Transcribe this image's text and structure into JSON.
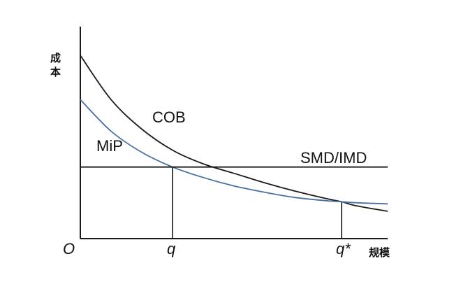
{
  "chart_data": {
    "type": "line",
    "title": "",
    "y_axis_label_chars": [
      "成",
      "本"
    ],
    "x_axis_label": "规模",
    "origin_label": "O",
    "grid": false,
    "legend": "none",
    "x_markers": [
      {
        "label": "q",
        "value": 0.3
      },
      {
        "label": "q*",
        "value": 0.85
      }
    ],
    "series": [
      {
        "name": "COB",
        "color": "#1a1a1a",
        "x": [
          0,
          0.1,
          0.2,
          0.3,
          0.4,
          0.5,
          0.6,
          0.7,
          0.8,
          0.85,
          0.9,
          1.0
        ],
        "y": [
          0.87,
          0.66,
          0.52,
          0.42,
          0.355,
          0.31,
          0.265,
          0.225,
          0.19,
          0.175,
          0.155,
          0.13
        ]
      },
      {
        "name": "MiP",
        "color": "#4a6fa5",
        "x": [
          0,
          0.1,
          0.2,
          0.3,
          0.4,
          0.5,
          0.6,
          0.7,
          0.8,
          0.85,
          0.9,
          1.0
        ],
        "y": [
          0.66,
          0.51,
          0.41,
          0.34,
          0.29,
          0.25,
          0.22,
          0.195,
          0.18,
          0.175,
          0.17,
          0.165
        ]
      },
      {
        "name": "SMD/IMD",
        "color": "#1a1a1a",
        "x": [
          0,
          1.0
        ],
        "y": [
          0.34,
          0.34
        ]
      }
    ]
  }
}
